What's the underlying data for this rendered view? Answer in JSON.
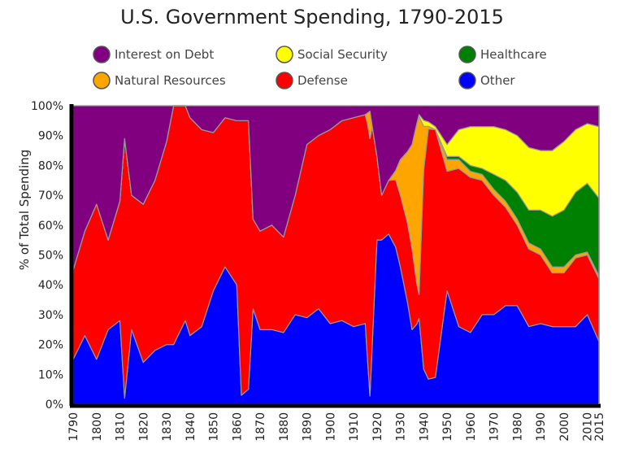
{
  "chart_data": {
    "type": "area",
    "stacked": true,
    "normalized": true,
    "title": "U.S. Government Spending, 1790-2015",
    "xlabel": "",
    "ylabel": "% of Total Spending",
    "xlim": [
      1790,
      2015
    ],
    "ylim": [
      0,
      100
    ],
    "x_ticks": [
      "1790",
      "1800",
      "1810",
      "1820",
      "1830",
      "1840",
      "1850",
      "1860",
      "1870",
      "1880",
      "1890",
      "1900",
      "1910",
      "1920",
      "1930",
      "1940",
      "1950",
      "1960",
      "1970",
      "1980",
      "1990",
      "2000",
      "2010",
      "2015"
    ],
    "y_ticks": [
      "0%",
      "10%",
      "20%",
      "30%",
      "40%",
      "50%",
      "60%",
      "70%",
      "80%",
      "90%",
      "100%"
    ],
    "grid": false,
    "legend_position": "top",
    "stack_order_bottom_to_top": [
      "Other",
      "Defense",
      "Natural Resources",
      "Healthcare",
      "Social Security",
      "Interest on Debt"
    ],
    "series": [
      {
        "name": "Interest on Debt",
        "color": "#800080",
        "values": [
          [
            1790,
            55
          ],
          [
            1795,
            42
          ],
          [
            1800,
            33
          ],
          [
            1805,
            45
          ],
          [
            1810,
            32
          ],
          [
            1812,
            11
          ],
          [
            1815,
            30
          ],
          [
            1820,
            33
          ],
          [
            1825,
            25
          ],
          [
            1830,
            12
          ],
          [
            1833,
            0
          ],
          [
            1838,
            0
          ],
          [
            1840,
            4
          ],
          [
            1845,
            8
          ],
          [
            1850,
            9
          ],
          [
            1855,
            4
          ],
          [
            1860,
            5
          ],
          [
            1865,
            5
          ],
          [
            1867,
            38
          ],
          [
            1870,
            42
          ],
          [
            1875,
            40
          ],
          [
            1880,
            44
          ],
          [
            1885,
            30
          ],
          [
            1890,
            13
          ],
          [
            1895,
            10
          ],
          [
            1900,
            8
          ],
          [
            1905,
            5
          ],
          [
            1910,
            4
          ],
          [
            1915,
            3
          ],
          [
            1917,
            2
          ],
          [
            1920,
            17
          ],
          [
            1922,
            30
          ],
          [
            1925,
            25
          ],
          [
            1930,
            18
          ],
          [
            1935,
            13
          ],
          [
            1938,
            3
          ],
          [
            1940,
            5
          ],
          [
            1945,
            7
          ],
          [
            1950,
            13
          ],
          [
            1955,
            8
          ],
          [
            1960,
            7
          ],
          [
            1965,
            7
          ],
          [
            1970,
            7
          ],
          [
            1975,
            8
          ],
          [
            1980,
            10
          ],
          [
            1985,
            14
          ],
          [
            1990,
            15
          ],
          [
            1995,
            15
          ],
          [
            2000,
            12
          ],
          [
            2005,
            8
          ],
          [
            2010,
            6
          ],
          [
            2015,
            7
          ]
        ]
      },
      {
        "name": "Social Security",
        "color": "#ffff00",
        "values": [
          [
            1790,
            0
          ],
          [
            1935,
            0
          ],
          [
            1937,
            0
          ],
          [
            1940,
            2
          ],
          [
            1945,
            1
          ],
          [
            1950,
            4
          ],
          [
            1955,
            9
          ],
          [
            1960,
            13
          ],
          [
            1965,
            14
          ],
          [
            1970,
            16
          ],
          [
            1975,
            17
          ],
          [
            1980,
            19
          ],
          [
            1985,
            21
          ],
          [
            1990,
            20
          ],
          [
            1995,
            22
          ],
          [
            2000,
            23
          ],
          [
            2005,
            21
          ],
          [
            2010,
            20
          ],
          [
            2015,
            24
          ]
        ]
      },
      {
        "name": "Healthcare",
        "color": "#008000",
        "values": [
          [
            1790,
            0
          ],
          [
            1945,
            0
          ],
          [
            1950,
            1
          ],
          [
            1955,
            1
          ],
          [
            1960,
            2
          ],
          [
            1965,
            2
          ],
          [
            1970,
            5
          ],
          [
            1975,
            7
          ],
          [
            1980,
            9
          ],
          [
            1985,
            11
          ],
          [
            1990,
            13
          ],
          [
            1995,
            17
          ],
          [
            2000,
            19
          ],
          [
            2005,
            21
          ],
          [
            2010,
            23
          ],
          [
            2015,
            26
          ]
        ]
      },
      {
        "name": "Natural Resources",
        "color": "#ffa500",
        "values": [
          [
            1790,
            0
          ],
          [
            1915,
            0
          ],
          [
            1916,
            4
          ],
          [
            1917,
            10
          ],
          [
            1918,
            0
          ],
          [
            1925,
            0
          ],
          [
            1928,
            3
          ],
          [
            1930,
            12
          ],
          [
            1933,
            23
          ],
          [
            1935,
            35
          ],
          [
            1937,
            55
          ],
          [
            1938,
            60
          ],
          [
            1940,
            15
          ],
          [
            1942,
            1
          ],
          [
            1945,
            0
          ],
          [
            1950,
            4
          ],
          [
            1955,
            3
          ],
          [
            1960,
            2
          ],
          [
            1965,
            2
          ],
          [
            1970,
            2
          ],
          [
            1975,
            2
          ],
          [
            1980,
            2
          ],
          [
            1985,
            2
          ],
          [
            1990,
            2
          ],
          [
            1995,
            2
          ],
          [
            2000,
            2
          ],
          [
            2005,
            1
          ],
          [
            2010,
            1
          ],
          [
            2015,
            1
          ]
        ]
      },
      {
        "name": "Defense",
        "color": "#ff0000",
        "values": [
          [
            1790,
            30
          ],
          [
            1795,
            35
          ],
          [
            1800,
            52
          ],
          [
            1805,
            30
          ],
          [
            1810,
            40
          ],
          [
            1812,
            87
          ],
          [
            1815,
            45
          ],
          [
            1820,
            53
          ],
          [
            1825,
            57
          ],
          [
            1830,
            68
          ],
          [
            1833,
            80
          ],
          [
            1838,
            72
          ],
          [
            1840,
            73
          ],
          [
            1845,
            66
          ],
          [
            1850,
            53
          ],
          [
            1855,
            50
          ],
          [
            1860,
            55
          ],
          [
            1862,
            92
          ],
          [
            1865,
            90
          ],
          [
            1867,
            30
          ],
          [
            1870,
            33
          ],
          [
            1875,
            35
          ],
          [
            1880,
            32
          ],
          [
            1885,
            40
          ],
          [
            1890,
            58
          ],
          [
            1895,
            58
          ],
          [
            1900,
            65
          ],
          [
            1905,
            67
          ],
          [
            1910,
            70
          ],
          [
            1915,
            70
          ],
          [
            1917,
            94
          ],
          [
            1920,
            28
          ],
          [
            1922,
            15
          ],
          [
            1925,
            18
          ],
          [
            1930,
            24
          ],
          [
            1935,
            27
          ],
          [
            1938,
            8
          ],
          [
            1940,
            68
          ],
          [
            1942,
            90
          ],
          [
            1945,
            83
          ],
          [
            1950,
            40
          ],
          [
            1955,
            53
          ],
          [
            1960,
            52
          ],
          [
            1965,
            45
          ],
          [
            1970,
            40
          ],
          [
            1975,
            33
          ],
          [
            1980,
            27
          ],
          [
            1985,
            26
          ],
          [
            1990,
            23
          ],
          [
            1995,
            18
          ],
          [
            2000,
            18
          ],
          [
            2005,
            23
          ],
          [
            2010,
            20
          ],
          [
            2015,
            21
          ]
        ]
      },
      {
        "name": "Other",
        "color": "#0000ff",
        "values": [
          [
            1790,
            15
          ],
          [
            1795,
            23
          ],
          [
            1800,
            15
          ],
          [
            1805,
            25
          ],
          [
            1810,
            28
          ],
          [
            1812,
            2
          ],
          [
            1815,
            25
          ],
          [
            1820,
            14
          ],
          [
            1825,
            18
          ],
          [
            1830,
            20
          ],
          [
            1833,
            20
          ],
          [
            1838,
            28
          ],
          [
            1840,
            23
          ],
          [
            1845,
            26
          ],
          [
            1850,
            38
          ],
          [
            1855,
            46
          ],
          [
            1860,
            40
          ],
          [
            1862,
            3
          ],
          [
            1865,
            5
          ],
          [
            1867,
            32
          ],
          [
            1870,
            25
          ],
          [
            1875,
            25
          ],
          [
            1880,
            24
          ],
          [
            1885,
            30
          ],
          [
            1890,
            29
          ],
          [
            1895,
            32
          ],
          [
            1900,
            27
          ],
          [
            1905,
            28
          ],
          [
            1910,
            26
          ],
          [
            1915,
            27
          ],
          [
            1917,
            3
          ],
          [
            1920,
            55
          ],
          [
            1922,
            55
          ],
          [
            1925,
            57
          ],
          [
            1930,
            46
          ],
          [
            1935,
            25
          ],
          [
            1938,
            29
          ],
          [
            1940,
            12
          ],
          [
            1942,
            9
          ],
          [
            1945,
            9
          ],
          [
            1950,
            38
          ],
          [
            1955,
            26
          ],
          [
            1960,
            24
          ],
          [
            1965,
            30
          ],
          [
            1970,
            30
          ],
          [
            1975,
            33
          ],
          [
            1980,
            33
          ],
          [
            1985,
            26
          ],
          [
            1990,
            27
          ],
          [
            1995,
            26
          ],
          [
            2000,
            26
          ],
          [
            2005,
            26
          ],
          [
            2010,
            30
          ],
          [
            2015,
            21
          ]
        ]
      }
    ],
    "legend_rows": [
      [
        "Interest on Debt",
        "Social Security",
        "Healthcare"
      ],
      [
        "Natural Resources",
        "Defense",
        "Other"
      ]
    ]
  }
}
